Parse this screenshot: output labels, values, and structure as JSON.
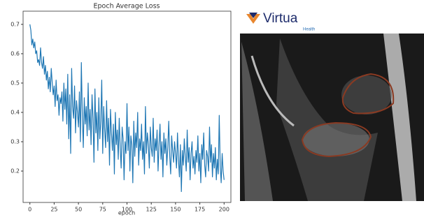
{
  "chart_data": {
    "type": "line",
    "title": "Epoch Average Loss",
    "x_label": "epoch",
    "x": [
      0,
      1,
      2,
      3,
      4,
      5,
      6,
      7,
      8,
      9,
      10,
      11,
      12,
      13,
      14,
      15,
      16,
      17,
      18,
      19,
      20,
      21,
      22,
      23,
      24,
      25,
      26,
      27,
      28,
      29,
      30,
      31,
      32,
      33,
      34,
      35,
      36,
      37,
      38,
      39,
      40,
      41,
      42,
      43,
      44,
      45,
      46,
      47,
      48,
      49,
      50,
      51,
      52,
      53,
      54,
      55,
      56,
      57,
      58,
      59,
      60,
      61,
      62,
      63,
      64,
      65,
      66,
      67,
      68,
      69,
      70,
      71,
      72,
      73,
      74,
      75,
      76,
      77,
      78,
      79,
      80,
      81,
      82,
      83,
      84,
      85,
      86,
      87,
      88,
      89,
      90,
      91,
      92,
      93,
      94,
      95,
      96,
      97,
      98,
      99,
      100,
      101,
      102,
      103,
      104,
      105,
      106,
      107,
      108,
      109,
      110,
      111,
      112,
      113,
      114,
      115,
      116,
      117,
      118,
      119,
      120,
      121,
      122,
      123,
      124,
      125,
      126,
      127,
      128,
      129,
      130,
      131,
      132,
      133,
      134,
      135,
      136,
      137,
      138,
      139,
      140,
      141,
      142,
      143,
      144,
      145,
      146,
      147,
      148,
      149,
      150,
      151,
      152,
      153,
      154,
      155,
      156,
      157,
      158,
      159,
      160,
      161,
      162,
      163,
      164,
      165,
      166,
      167,
      168,
      169,
      170,
      171,
      172,
      173,
      174,
      175,
      176,
      177,
      178,
      179,
      180,
      181,
      182,
      183,
      184,
      185,
      186,
      187,
      188,
      189,
      190,
      191,
      192,
      193,
      194,
      195,
      196,
      197,
      198,
      199,
      200
    ],
    "series": [
      {
        "color": "#1f77b4",
        "values": [
          0.7,
          0.68,
          0.63,
          0.65,
          0.62,
          0.64,
          0.6,
          0.61,
          0.57,
          0.58,
          0.56,
          0.62,
          0.57,
          0.55,
          0.59,
          0.53,
          0.56,
          0.51,
          0.54,
          0.48,
          0.52,
          0.47,
          0.55,
          0.5,
          0.46,
          0.49,
          0.42,
          0.51,
          0.44,
          0.46,
          0.39,
          0.45,
          0.43,
          0.47,
          0.37,
          0.5,
          0.41,
          0.48,
          0.36,
          0.53,
          0.31,
          0.46,
          0.26,
          0.55,
          0.42,
          0.38,
          0.49,
          0.33,
          0.44,
          0.4,
          0.35,
          0.47,
          0.3,
          0.57,
          0.39,
          0.28,
          0.45,
          0.36,
          0.42,
          0.32,
          0.5,
          0.34,
          0.41,
          0.29,
          0.46,
          0.38,
          0.23,
          0.48,
          0.33,
          0.4,
          0.27,
          0.45,
          0.31,
          0.37,
          0.51,
          0.26,
          0.42,
          0.34,
          0.28,
          0.44,
          0.3,
          0.38,
          0.22,
          0.41,
          0.33,
          0.27,
          0.36,
          0.19,
          0.4,
          0.29,
          0.34,
          0.24,
          0.38,
          0.28,
          0.21,
          0.35,
          0.31,
          0.17,
          0.3,
          0.26,
          0.43,
          0.27,
          0.35,
          0.2,
          0.32,
          0.29,
          0.16,
          0.37,
          0.25,
          0.33,
          0.28,
          0.4,
          0.22,
          0.31,
          0.27,
          0.36,
          0.24,
          0.3,
          0.19,
          0.42,
          0.26,
          0.33,
          0.29,
          0.21,
          0.35,
          0.28,
          0.25,
          0.38,
          0.23,
          0.31,
          0.27,
          0.34,
          0.2,
          0.29,
          0.36,
          0.24,
          0.3,
          0.18,
          0.33,
          0.26,
          0.31,
          0.22,
          0.28,
          0.37,
          0.25,
          0.19,
          0.32,
          0.27,
          0.23,
          0.3,
          0.26,
          0.21,
          0.33,
          0.24,
          0.18,
          0.29,
          0.13,
          0.27,
          0.22,
          0.31,
          0.25,
          0.2,
          0.34,
          0.23,
          0.28,
          0.17,
          0.26,
          0.3,
          0.21,
          0.25,
          0.19,
          0.27,
          0.23,
          0.32,
          0.2,
          0.26,
          0.16,
          0.29,
          0.24,
          0.33,
          0.22,
          0.18,
          0.27,
          0.25,
          0.2,
          0.35,
          0.23,
          0.29,
          0.18,
          0.26,
          0.21,
          0.28,
          0.17,
          0.24,
          0.19,
          0.39,
          0.22,
          0.16,
          0.26,
          0.2,
          0.17
        ]
      }
    ],
    "xlim": [
      -7,
      207
    ],
    "ylim": [
      0.093,
      0.745
    ],
    "xticks": [
      0,
      25,
      50,
      75,
      100,
      125,
      150,
      175,
      200
    ],
    "yticks": [
      0.2,
      0.3,
      0.4,
      0.5,
      0.6,
      0.7
    ]
  },
  "image": {
    "logo_text": "Virtua",
    "logo_subtext": "Health"
  }
}
